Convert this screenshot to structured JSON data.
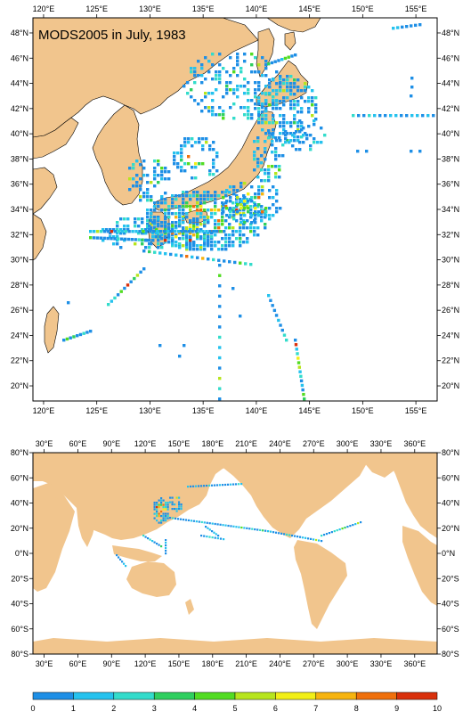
{
  "title": "MODS2005 in July, 1983",
  "regional_map": {
    "lon_labels": [
      "120°E",
      "125°E",
      "130°E",
      "135°E",
      "140°E",
      "145°E",
      "150°E",
      "155°E"
    ],
    "lon_values": [
      120,
      125,
      130,
      135,
      140,
      145,
      150,
      155
    ],
    "lat_labels": [
      "20°N",
      "22°N",
      "24°N",
      "26°N",
      "28°N",
      "30°N",
      "32°N",
      "34°N",
      "36°N",
      "38°N",
      "40°N",
      "42°N",
      "44°N",
      "46°N",
      "48°N"
    ],
    "lat_values": [
      20,
      22,
      24,
      26,
      28,
      30,
      32,
      34,
      36,
      38,
      40,
      42,
      44,
      46,
      48
    ],
    "lon_range": [
      119,
      157
    ],
    "lat_range": [
      18.8,
      49.2
    ]
  },
  "global_map": {
    "lon_labels": [
      "30°E",
      "60°E",
      "90°E",
      "120°E",
      "150°E",
      "180°E",
      "210°E",
      "240°E",
      "270°E",
      "300°E",
      "330°E",
      "360°E"
    ],
    "lon_values": [
      30,
      60,
      90,
      120,
      150,
      180,
      210,
      240,
      270,
      300,
      330,
      360
    ],
    "lat_labels": [
      "80°S",
      "60°S",
      "40°S",
      "20°S",
      "0°N",
      "20°N",
      "40°N",
      "60°N",
      "80°N"
    ],
    "lat_values": [
      -80,
      -60,
      -40,
      -20,
      0,
      20,
      40,
      60,
      80
    ],
    "lon_range": [
      20,
      380
    ],
    "lat_range": [
      -80,
      80
    ]
  },
  "colorbar": {
    "labels": [
      "0",
      "1",
      "2",
      "3",
      "4",
      "5",
      "6",
      "7",
      "8",
      "9",
      "10"
    ],
    "colors": [
      "#1a4fd6",
      "#1e8fe6",
      "#25c2ee",
      "#33dccb",
      "#2fcf5f",
      "#52dc22",
      "#b7e51d",
      "#f2ef16",
      "#f7b40f",
      "#f0700c",
      "#d9300b"
    ]
  },
  "colors": {
    "land": "#f1c58d",
    "ocean": "#ffffff",
    "frame": "#000000"
  }
}
